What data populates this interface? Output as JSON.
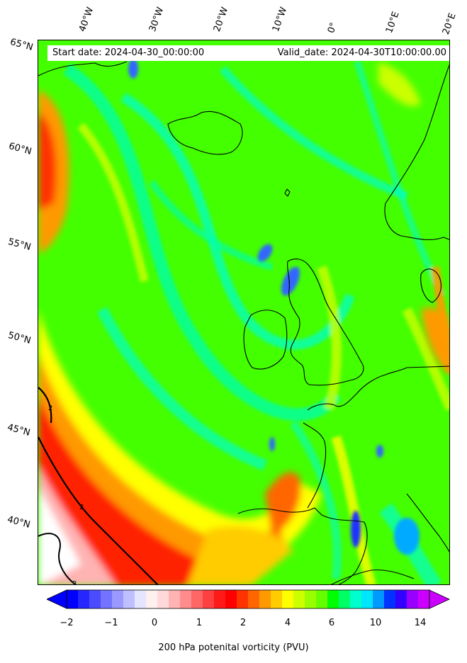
{
  "map": {
    "title_left": "Start date: 2024-04-30_00:00:00",
    "title_right": "Valid_date: 2024-04-30T10:00:00.00",
    "colorbar_label": "200 hPa potenital vorticity (PVU)",
    "contour_label": "2",
    "lon_labels": [
      "40°W",
      "30°W",
      "20°W",
      "10°W",
      "0°",
      "10°E",
      "20°E"
    ],
    "lat_labels": [
      "65°N",
      "60°N",
      "55°N",
      "50°N",
      "45°N",
      "40°N"
    ],
    "colorbar_ticks": [
      "−2",
      "−1",
      "0",
      "1",
      "2",
      "4",
      "6",
      "10",
      "14"
    ],
    "colorbar_colors": [
      "#0000ff",
      "#2626ff",
      "#4c4cff",
      "#7373ff",
      "#9999ff",
      "#bfbfff",
      "#e5e5ff",
      "#fff0f0",
      "#ffd9d9",
      "#ffb3b3",
      "#ff8c8c",
      "#ff6666",
      "#ff4040",
      "#ff1a1a",
      "#ff0000",
      "#ff3300",
      "#ff6600",
      "#ff9900",
      "#ffcc00",
      "#ffff00",
      "#ccff00",
      "#99ff00",
      "#66ff00",
      "#00ff00",
      "#00ff66",
      "#00ffcc",
      "#00e6ff",
      "#0099ff",
      "#0033ff",
      "#3300ff",
      "#9900ff",
      "#cc00ff"
    ],
    "field_colors": {
      "green": "#33ff00",
      "light_green": "#66ff00",
      "cyan": "#00ffcc",
      "teal": "#00ffaa",
      "yellow": "#ffff00",
      "yellow_green": "#ccff00",
      "orange": "#ff9900",
      "red": "#ff2200",
      "pink": "#ffb3b3",
      "white": "#ffffff",
      "blue": "#3366ff"
    }
  }
}
